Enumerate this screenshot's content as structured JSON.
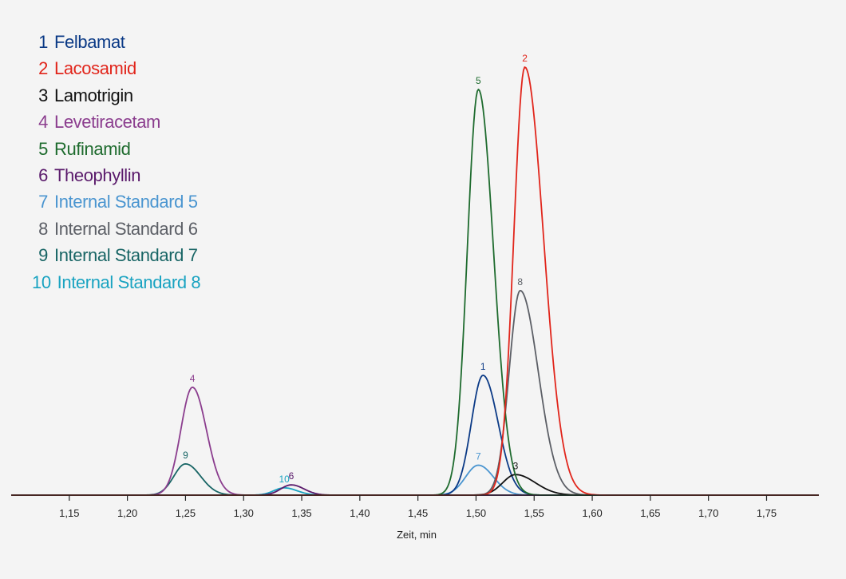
{
  "chart_data": {
    "type": "line",
    "title": "",
    "xlabel": "Zeit, min",
    "ylabel": "",
    "xlim": [
      1.1,
      1.795
    ],
    "ylim": [
      0,
      1
    ],
    "x_ticks": [
      "1,15",
      "1,20",
      "1,25",
      "1,30",
      "1,35",
      "1,40",
      "1,45",
      "1,50",
      "1,55",
      "1,60",
      "1,65",
      "1,70",
      "1,75"
    ],
    "x_tick_values": [
      1.15,
      1.2,
      1.25,
      1.3,
      1.35,
      1.4,
      1.45,
      1.5,
      1.55,
      1.6,
      1.65,
      1.7,
      1.75
    ],
    "grid": false,
    "legend_position": "top-left",
    "series": [
      {
        "id": "1",
        "name": "Felbamat",
        "color": "#0b3a86",
        "peak_label": "1",
        "retention_time": 1.506,
        "height": 0.28,
        "sigma_left": 0.01,
        "sigma_right": 0.013
      },
      {
        "id": "2",
        "name": "Lacosamid",
        "color": "#e1251b",
        "peak_label": "2",
        "retention_time": 1.542,
        "height": 1.0,
        "sigma_left": 0.0095,
        "sigma_right": 0.016
      },
      {
        "id": "3",
        "name": "Lamotrigin",
        "color": "#111111",
        "peak_label": "3",
        "retention_time": 1.534,
        "height": 0.048,
        "sigma_left": 0.011,
        "sigma_right": 0.017
      },
      {
        "id": "4",
        "name": "Levetiracetam",
        "color": "#8b3d8e",
        "peak_label": "4",
        "retention_time": 1.256,
        "height": 0.252,
        "sigma_left": 0.01,
        "sigma_right": 0.012
      },
      {
        "id": "5",
        "name": "Rufinamid",
        "color": "#1e6b2e",
        "peak_label": "5",
        "retention_time": 1.502,
        "height": 0.948,
        "sigma_left": 0.0095,
        "sigma_right": 0.013
      },
      {
        "id": "6",
        "name": "Theophyllin",
        "color": "#5a1a6b",
        "peak_label": "6",
        "retention_time": 1.341,
        "height": 0.024,
        "sigma_left": 0.009,
        "sigma_right": 0.011
      },
      {
        "id": "7",
        "name": "Internal Standard 5",
        "color": "#4a95d0",
        "peak_label": "7",
        "retention_time": 1.502,
        "height": 0.07,
        "sigma_left": 0.011,
        "sigma_right": 0.013
      },
      {
        "id": "8",
        "name": "Internal Standard 6",
        "color": "#5c5f66",
        "peak_label": "8",
        "retention_time": 1.538,
        "height": 0.478,
        "sigma_left": 0.0095,
        "sigma_right": 0.0155
      },
      {
        "id": "9",
        "name": "Internal Standard 7",
        "color": "#186565",
        "peak_label": "9",
        "retention_time": 1.25,
        "height": 0.073,
        "sigma_left": 0.01,
        "sigma_right": 0.013
      },
      {
        "id": "10",
        "name": "Internal Standard 8",
        "color": "#19a3c1",
        "peak_label": "10",
        "retention_time": 1.335,
        "height": 0.017,
        "sigma_left": 0.009,
        "sigma_right": 0.011
      }
    ]
  }
}
